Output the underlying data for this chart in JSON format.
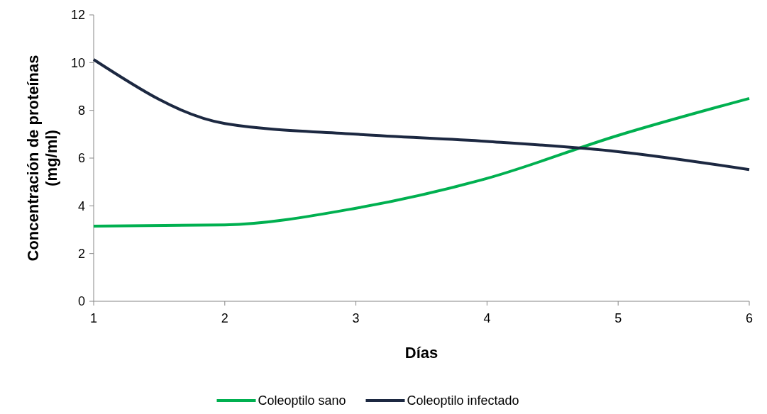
{
  "chart_data": {
    "type": "line",
    "xlabel": "Días",
    "ylabel": "Concentración de proteínas\n(mg/ml)",
    "x": [
      1,
      2,
      3,
      4,
      5,
      6
    ],
    "xlim": [
      1,
      6
    ],
    "xticks": [
      1,
      2,
      3,
      4,
      5,
      6
    ],
    "ylim": [
      0,
      12
    ],
    "yticks": [
      0,
      2,
      4,
      6,
      8,
      10,
      12
    ],
    "series": [
      {
        "name": "Coleoptilo sano",
        "color": "#00b050",
        "values": [
          3.15,
          3.2,
          3.9,
          5.15,
          6.95,
          8.5
        ]
      },
      {
        "name": "Coleoptilo infectado",
        "color": "#1c2841",
        "values": [
          10.13,
          7.45,
          7.0,
          6.7,
          6.27,
          5.52
        ]
      }
    ],
    "grid": false,
    "legend": "bottom",
    "marker": "none",
    "line_style": "solid"
  }
}
